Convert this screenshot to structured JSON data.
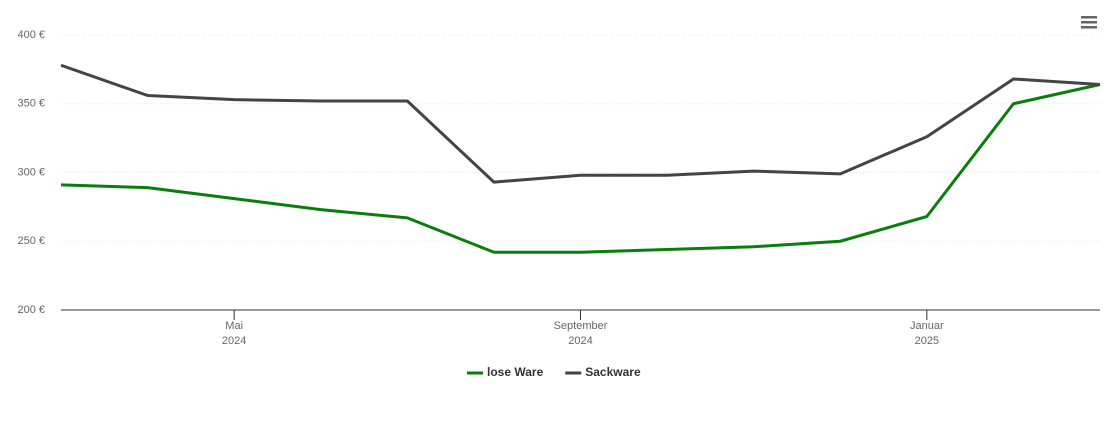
{
  "chart_data": {
    "type": "line",
    "x": [
      "2024-03",
      "2024-04",
      "2024-05",
      "2024-06",
      "2024-07",
      "2024-08",
      "2024-09",
      "2024-10",
      "2024-11",
      "2024-12",
      "2025-01",
      "2025-02",
      "2025-03"
    ],
    "xlim": [
      "2024-03",
      "2025-03"
    ],
    "xticks": [
      {
        "value": "2024-05",
        "label": [
          "Mai",
          "2024"
        ]
      },
      {
        "value": "2024-09",
        "label": [
          "September",
          "2024"
        ]
      },
      {
        "value": "2025-01",
        "label": [
          "Januar",
          "2025"
        ]
      }
    ],
    "ylim": [
      200,
      400
    ],
    "yticks": [
      {
        "value": 200,
        "label": "200 €"
      },
      {
        "value": 250,
        "label": "250 €"
      },
      {
        "value": 300,
        "label": "300 €"
      },
      {
        "value": 350,
        "label": "350 €"
      },
      {
        "value": 400,
        "label": "400 €"
      }
    ],
    "grid": true,
    "legend": "bottom",
    "series": [
      {
        "name": "lose Ware",
        "color": "#0a7d0a",
        "values": [
          291,
          289,
          281,
          273,
          267,
          242,
          242,
          244,
          246,
          250,
          268,
          350,
          364
        ]
      },
      {
        "name": "Sackware",
        "color": "#434348",
        "values": [
          378,
          356,
          353,
          352,
          352,
          293,
          298,
          298,
          301,
          299,
          326,
          368,
          364
        ]
      }
    ]
  }
}
